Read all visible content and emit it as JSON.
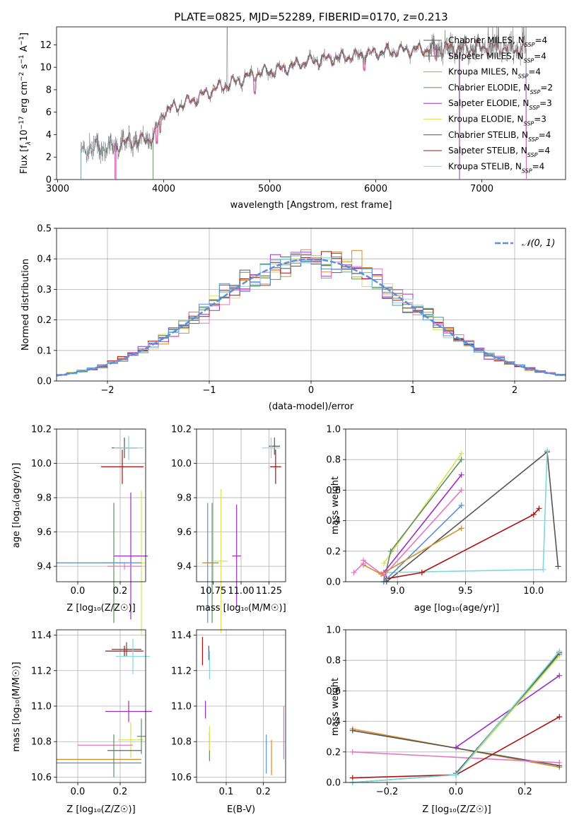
{
  "title": "PLATE=0825, MJD=52289, FIBERID=0170, z=0.213",
  "legend_labels": {
    "chabrier_miles": "Chabrier MILES, N",
    "salpeter_miles": "Salpeter MILES, N",
    "kroupa_miles": "Kroupa MILES, N",
    "chabrier_elodie": "Chabrier ELODIE, N",
    "salpeter_elodie": "Salpeter ELODIE, N",
    "kroupa_elodie": "Kroupa ELODIE, N",
    "chabrier_stelib": "Chabrier STELIB, N",
    "salpeter_stelib": "Salpeter STELIB, N",
    "kroupa_stelib": "Kroupa STELIB, N"
  },
  "legend_sub": "SSP",
  "legend_counts": [
    "=4",
    "=4",
    "=4",
    "=2",
    "=3",
    "=3",
    "=4",
    "=4",
    "=4"
  ],
  "colors": {
    "chabrier_miles": "#555555",
    "salpeter_miles": "#e377c2",
    "kroupa_miles": "#d98c2a",
    "chabrier_elodie": "#5e8f5e",
    "salpeter_elodie": "#9b30c0",
    "kroupa_elodie": "#d6e25a",
    "chabrier_stelib": "#555555",
    "salpeter_stelib": "#aa1111",
    "kroupa_stelib": "#7dd8dc",
    "extra_blue": "#5b8fd9",
    "normal_curve": "#5b8fd9"
  },
  "panel_spectrum": {
    "xlabel": "wavelength [Angstrom, rest frame]",
    "ylabel_pre": "Flux [f",
    "ylabel_lambda": "λ",
    "ylabel_mid": "10",
    "ylabel_exp": "−17",
    "ylabel_post": " erg cm",
    "ylabel_exp2": "−2",
    "ylabel_s": " s",
    "ylabel_exp3": "−1",
    "ylabel_A": " A",
    "ylabel_exp4": "−1",
    "ylabel_end": "]",
    "xticks": [
      "3000",
      "4000",
      "5000",
      "6000",
      "7000"
    ],
    "yticks": [
      "0",
      "2",
      "4",
      "6",
      "8",
      "10",
      "12"
    ]
  },
  "panel_residuals": {
    "xlabel": "(data-model)/error",
    "ylabel": "Normed distribution",
    "legend": "𝒩(0, 1)",
    "xticks": [
      "−2",
      "−1",
      "0",
      "1",
      "2"
    ],
    "yticks": [
      "0.0",
      "0.1",
      "0.2",
      "0.3",
      "0.4",
      "0.5"
    ]
  },
  "panel_age_Z": {
    "xlabel": "Z [log₁₀(Z/Z☉)]",
    "ylabel": "age  [log₁₀(age/yr)]",
    "xticks": [
      "0.0",
      "0.2"
    ],
    "yticks": [
      "9.4",
      "9.6",
      "9.8",
      "10.0",
      "10.2"
    ]
  },
  "panel_age_mass": {
    "xlabel": "mass [log₁₀(M/M☉)]",
    "xticks": [
      "10.75",
      "11.00",
      "11.25"
    ],
    "yticks": [
      "9.4",
      "9.6",
      "9.8",
      "10.0",
      "10.2"
    ]
  },
  "panel_weight_age": {
    "xlabel": "age  [log₁₀(age/yr)]",
    "ylabel": "mass weight",
    "xticks": [
      "9.0",
      "9.5",
      "10.0"
    ],
    "yticks": [
      "0.0",
      "0.2",
      "0.4",
      "0.6",
      "0.8",
      "1.0"
    ]
  },
  "panel_mass_Z": {
    "xlabel": "Z [log₁₀(Z/Z☉)]",
    "ylabel": "mass [log₁₀(M/M☉)]",
    "xticks": [
      "0.0",
      "0.2"
    ],
    "yticks": [
      "10.6",
      "10.8",
      "11.0",
      "11.2",
      "11.4"
    ]
  },
  "panel_mass_ebv": {
    "xlabel": "E(B-V)",
    "xticks": [
      "0.1",
      "0.2"
    ],
    "yticks": [
      "10.6",
      "10.8",
      "11.0",
      "11.2",
      "11.4"
    ]
  },
  "panel_weight_Z": {
    "xlabel": "Z [log₁₀(Z/Z☉)]",
    "ylabel": "mass weight",
    "xticks": [
      "−0.2",
      "0.0",
      "0.2"
    ],
    "yticks": [
      "0.0",
      "0.2",
      "0.4",
      "0.6",
      "0.8",
      "1.0"
    ]
  },
  "chart_data": [
    {
      "type": "line",
      "name": "spectrum",
      "title": "PLATE=0825, MJD=52289, FIBERID=0170, z=0.213",
      "xlabel": "wavelength [Angstrom, rest frame]",
      "ylabel": "Flux [fλ 10^-17 erg cm^-2 s^-1 A^-1]",
      "xlim": [
        2990,
        7790
      ],
      "ylim": [
        0,
        13.6
      ],
      "continuum": [
        [
          3220,
          2.6
        ],
        [
          3400,
          2.9
        ],
        [
          3550,
          3.0
        ],
        [
          3650,
          3.3
        ],
        [
          3800,
          3.5
        ],
        [
          3900,
          3.8
        ],
        [
          4000,
          6.1
        ],
        [
          4150,
          6.6
        ],
        [
          4300,
          7.2
        ],
        [
          4500,
          8.1
        ],
        [
          4700,
          8.8
        ],
        [
          4900,
          9.5
        ],
        [
          5100,
          9.8
        ],
        [
          5300,
          10.4
        ],
        [
          5500,
          10.7
        ],
        [
          5700,
          10.9
        ],
        [
          5900,
          11.2
        ],
        [
          6100,
          11.4
        ],
        [
          6300,
          11.5
        ],
        [
          6500,
          11.6
        ],
        [
          6700,
          11.7
        ],
        [
          6900,
          11.7
        ],
        [
          7100,
          11.8
        ],
        [
          7400,
          11.6
        ]
      ]
    },
    {
      "type": "line",
      "name": "residuals",
      "xlabel": "(data-model)/error",
      "ylabel": "Normed distribution",
      "xlim": [
        -2.5,
        2.5
      ],
      "ylim": [
        0,
        0.5
      ],
      "bin_width": 0.1,
      "normal_mu": 0,
      "normal_sigma": 1
    },
    {
      "type": "scatter",
      "name": "age_vs_Z",
      "xlabel": "Z [log10(Z/Zsun)]",
      "ylabel": "age [log10(age/yr)]",
      "xlim": [
        -0.1,
        0.32
      ],
      "ylim": [
        9.31,
        10.2
      ],
      "points": [
        {
          "key": "chabrier_miles",
          "x": 0.22,
          "y": 10.09,
          "xerr": 0.06,
          "yerr": 0.06
        },
        {
          "key": "kroupa_stelib",
          "x": 0.24,
          "y": 10.09,
          "xerr": 0.07,
          "yerr": 0.07
        },
        {
          "key": "salpeter_stelib",
          "x": 0.21,
          "y": 9.98,
          "xerr": 0.1,
          "yerr": 0.1
        },
        {
          "key": "kroupa_elodie",
          "x": 0.3,
          "y": 9.42,
          "xerr": 0.02,
          "yerr": 0.42
        },
        {
          "key": "salpeter_elodie",
          "x": 0.25,
          "y": 9.46,
          "xerr": 0.08,
          "yerr": 0.37
        },
        {
          "key": "chabrier_elodie",
          "x": 0.17,
          "y": 9.42,
          "xerr": 0.06,
          "yerr": 0.35
        },
        {
          "key": "kroupa_miles",
          "x": 0.1,
          "y": 9.42,
          "xerr": 0.2,
          "yerr": 0.0
        },
        {
          "key": "extra_blue",
          "x": 0.1,
          "y": 9.42,
          "xerr": 0.2,
          "yerr": 0.0
        },
        {
          "key": "salpeter_miles",
          "x": 0.22,
          "y": 9.4,
          "xerr": 0.08,
          "yerr": 0.02
        }
      ]
    },
    {
      "type": "scatter",
      "name": "age_vs_mass",
      "xlabel": "mass [log10(M/Msun)]",
      "xlim": [
        10.6,
        11.4
      ],
      "ylim": [
        9.31,
        10.2
      ],
      "points": [
        {
          "key": "chabrier_miles",
          "x": 11.3,
          "y": 10.1,
          "xerr": 0.05,
          "yerr": 0.05
        },
        {
          "key": "kroupa_stelib",
          "x": 11.27,
          "y": 10.09,
          "xerr": 0.08,
          "yerr": 0.06
        },
        {
          "key": "salpeter_stelib",
          "x": 11.31,
          "y": 9.98,
          "xerr": 0.05,
          "yerr": 0.1
        },
        {
          "key": "salpeter_elodie",
          "x": 10.96,
          "y": 9.46,
          "xerr": 0.04,
          "yerr": 0.3
        },
        {
          "key": "kroupa_elodie",
          "x": 10.82,
          "y": 9.43,
          "xerr": 0.06,
          "yerr": 0.42
        },
        {
          "key": "chabrier_elodie",
          "x": 10.74,
          "y": 9.42,
          "xerr": 0.06,
          "yerr": 0.35
        },
        {
          "key": "extra_blue",
          "x": 10.7,
          "y": 9.42,
          "xerr": 0.04,
          "yerr": 0.35
        },
        {
          "key": "kroupa_miles",
          "x": 10.7,
          "y": 9.42,
          "xerr": 0.05,
          "yerr": 0.0
        }
      ]
    },
    {
      "type": "line",
      "name": "weight_vs_age",
      "xlabel": "age [log10(age/yr)]",
      "ylabel": "mass weight",
      "xlim": [
        8.62,
        10.24
      ],
      "ylim": [
        0,
        1
      ],
      "series": [
        {
          "key": "chabrier_stelib",
          "points": [
            [
              8.92,
              0.0
            ],
            [
              10.1,
              0.85
            ],
            [
              10.18,
              0.1
            ]
          ]
        },
        {
          "key": "kroupa_stelib",
          "points": [
            [
              8.9,
              0.0
            ],
            [
              8.92,
              0.06
            ],
            [
              10.07,
              0.08
            ],
            [
              10.1,
              0.86
            ]
          ]
        },
        {
          "key": "salpeter_stelib",
          "points": [
            [
              8.92,
              0.02
            ],
            [
              9.18,
              0.06
            ],
            [
              10.0,
              0.44
            ],
            [
              10.04,
              0.48
            ]
          ]
        },
        {
          "key": "kroupa_elodie",
          "points": [
            [
              8.9,
              0.12
            ],
            [
              9.47,
              0.84
            ]
          ]
        },
        {
          "key": "chabrier_elodie",
          "points": [
            [
              8.9,
              0.0
            ],
            [
              8.95,
              0.2
            ],
            [
              9.47,
              0.8
            ]
          ]
        },
        {
          "key": "salpeter_elodie",
          "points": [
            [
              8.9,
              0.06
            ],
            [
              9.47,
              0.7
            ]
          ]
        },
        {
          "key": "salpeter_miles",
          "points": [
            [
              8.75,
              0.14
            ],
            [
              8.9,
              0.04
            ],
            [
              9.47,
              0.6
            ]
          ]
        },
        {
          "key": "extra_blue",
          "points": [
            [
              8.9,
              0.0
            ],
            [
              9.47,
              0.5
            ]
          ]
        },
        {
          "key": "kroupa_miles",
          "points": [
            [
              8.75,
              0.11
            ],
            [
              8.88,
              0.05
            ],
            [
              9.47,
              0.35
            ]
          ]
        },
        {
          "key": "salpeter_miles",
          "points": [
            [
              8.68,
              0.06
            ],
            [
              8.75,
              0.12
            ]
          ]
        }
      ]
    },
    {
      "type": "scatter",
      "name": "mass_vs_Z",
      "xlabel": "Z [log10(Z/Zsun)]",
      "ylabel": "mass [log10(M/Msun)]",
      "xlim": [
        -0.1,
        0.32
      ],
      "ylim": [
        10.57,
        11.43
      ],
      "points": [
        {
          "key": "chabrier_miles",
          "x": 0.23,
          "y": 11.32,
          "xerr": 0.07,
          "yerr": 0.04
        },
        {
          "key": "salpeter_stelib",
          "x": 0.22,
          "y": 11.31,
          "xerr": 0.09,
          "yerr": 0.03
        },
        {
          "key": "kroupa_stelib",
          "x": 0.26,
          "y": 11.28,
          "xerr": 0.08,
          "yerr": 0.1
        },
        {
          "key": "salpeter_elodie",
          "x": 0.24,
          "y": 10.97,
          "xerr": 0.11,
          "yerr": 0.06
        },
        {
          "key": "kroupa_elodie",
          "x": 0.25,
          "y": 10.81,
          "xerr": 0.06,
          "yerr": 0.1
        },
        {
          "key": "chabrier_elodie",
          "x": 0.3,
          "y": 10.83,
          "xerr": 0.02,
          "yerr": 0.1
        },
        {
          "key": "salpeter_miles",
          "x": 0.13,
          "y": 10.78,
          "xerr": 0.13,
          "yerr": 0.0
        },
        {
          "key": "chabrier_miles",
          "x": 0.22,
          "y": 10.75,
          "xerr": 0.08,
          "yerr": 0.0
        },
        {
          "key": "kroupa_miles",
          "x": 0.1,
          "y": 10.7,
          "xerr": 0.2,
          "yerr": 0.0
        },
        {
          "key": "extra_blue",
          "x": 0.1,
          "y": 10.68,
          "xerr": 0.2,
          "yerr": 0.0
        },
        {
          "key": "chabrier_elodie",
          "x": 0.17,
          "y": 10.72,
          "xerr": 0.0,
          "yerr": 0.12
        }
      ]
    },
    {
      "type": "scatter",
      "name": "mass_vs_ebv",
      "xlabel": "E(B-V)",
      "xlim": [
        0.02,
        0.26
      ],
      "ylim": [
        10.57,
        11.43
      ],
      "points": [
        {
          "key": "salpeter_stelib",
          "x": 0.036,
          "y": 11.31,
          "xerr": 0,
          "yerr": 0.08
        },
        {
          "key": "chabrier_miles",
          "x": 0.053,
          "y": 11.3,
          "xerr": 0,
          "yerr": 0.04
        },
        {
          "key": "kroupa_stelib",
          "x": 0.055,
          "y": 11.23,
          "xerr": 0,
          "yerr": 0.08
        },
        {
          "key": "salpeter_elodie",
          "x": 0.044,
          "y": 10.98,
          "xerr": 0,
          "yerr": 0.05
        },
        {
          "key": "chabrier_elodie",
          "x": 0.055,
          "y": 10.77,
          "xerr": 0,
          "yerr": 0.08
        },
        {
          "key": "kroupa_elodie",
          "x": 0.055,
          "y": 10.82,
          "xerr": 0,
          "yerr": 0.07
        },
        {
          "key": "extra_blue",
          "x": 0.208,
          "y": 10.73,
          "xerr": 0,
          "yerr": 0.11
        },
        {
          "key": "kroupa_miles",
          "x": 0.222,
          "y": 10.71,
          "xerr": 0,
          "yerr": 0.1
        },
        {
          "key": "salpeter_miles",
          "x": 0.255,
          "y": 10.85,
          "xerr": 0,
          "yerr": 0.15
        }
      ]
    },
    {
      "type": "line",
      "name": "weight_vs_Z",
      "xlabel": "Z [log10(Z/Zsun)]",
      "ylabel": "mass weight",
      "xlim": [
        -0.32,
        0.32
      ],
      "ylim": [
        0,
        1
      ],
      "series": [
        {
          "key": "kroupa_miles",
          "points": [
            [
              -0.3,
              0.35
            ],
            [
              0.3,
              0.1
            ]
          ]
        },
        {
          "key": "chabrier_miles",
          "points": [
            [
              -0.3,
              0.34
            ],
            [
              0.3,
              0.11
            ]
          ]
        },
        {
          "key": "salpeter_miles",
          "points": [
            [
              -0.3,
              0.2
            ],
            [
              0.3,
              0.13
            ]
          ]
        },
        {
          "key": "salpeter_stelib",
          "points": [
            [
              -0.3,
              0.03
            ],
            [
              0.0,
              0.05
            ],
            [
              0.3,
              0.43
            ]
          ]
        },
        {
          "key": "salpeter_elodie",
          "points": [
            [
              0.0,
              0.23
            ],
            [
              0.3,
              0.7
            ]
          ]
        },
        {
          "key": "chabrier_elodie",
          "points": [
            [
              -0.3,
              0.0
            ],
            [
              0.0,
              0.05
            ],
            [
              0.3,
              0.84
            ]
          ]
        },
        {
          "key": "kroupa_elodie",
          "points": [
            [
              0.0,
              0.05
            ],
            [
              0.3,
              0.83
            ]
          ]
        },
        {
          "key": "chabrier_stelib",
          "points": [
            [
              0.0,
              0.06
            ],
            [
              0.3,
              0.85
            ]
          ]
        },
        {
          "key": "kroupa_stelib",
          "points": [
            [
              -0.3,
              0.0
            ],
            [
              0.0,
              0.05
            ],
            [
              0.3,
              0.86
            ]
          ]
        }
      ]
    }
  ]
}
